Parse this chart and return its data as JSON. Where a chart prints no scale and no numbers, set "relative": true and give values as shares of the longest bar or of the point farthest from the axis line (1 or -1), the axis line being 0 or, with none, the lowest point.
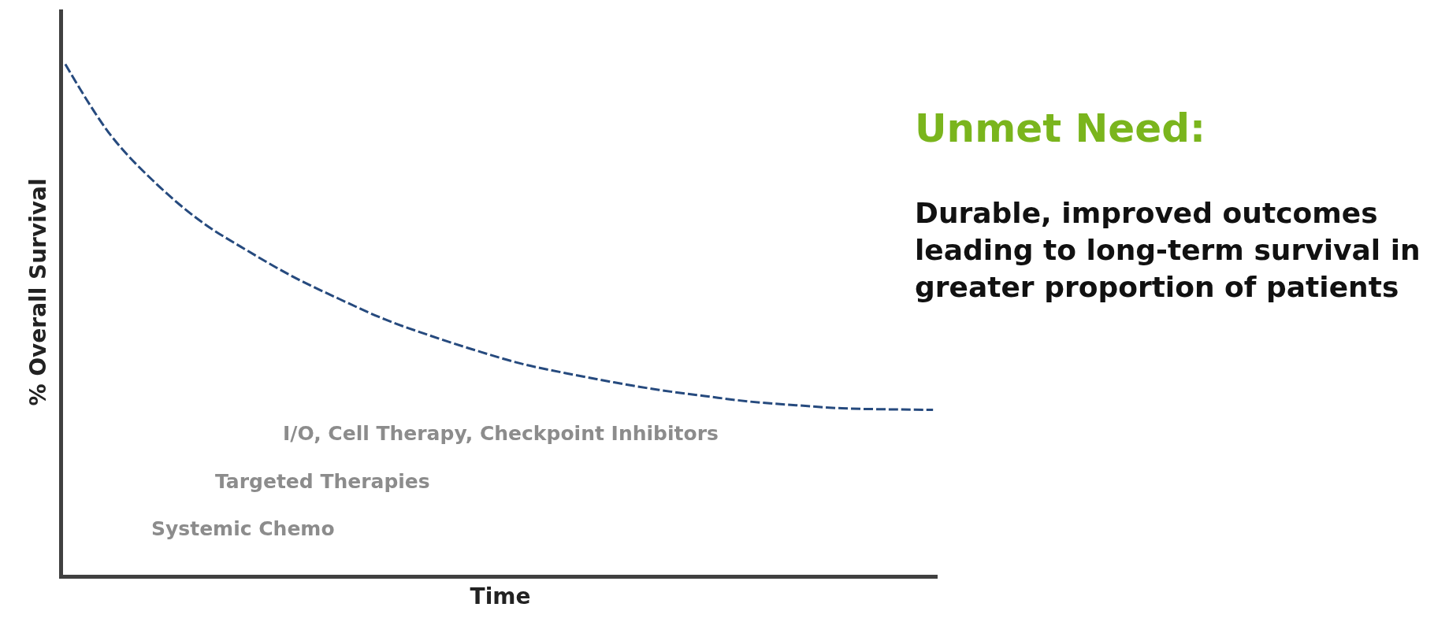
{
  "chart_data": {
    "type": "line",
    "relative": true,
    "xlabel": "Time",
    "ylabel": "% Overall Survival",
    "categories": [
      null,
      null,
      null,
      null,
      null,
      null,
      null,
      null,
      null,
      null,
      null,
      null,
      null,
      null,
      null,
      null,
      null,
      null,
      null,
      null
    ],
    "series": [
      {
        "color": "#264a7e",
        "values": [
          1.0,
          0.86,
          0.765,
          0.69,
          0.634,
          0.583,
          0.54,
          0.5,
          0.468,
          0.439,
          0.413,
          0.394,
          0.377,
          0.362,
          0.35,
          0.339,
          0.332,
          0.326,
          0.324,
          0.323
        ]
      }
    ],
    "line_style": "dashed",
    "marker": "none",
    "tick_labels": false,
    "annotations": [
      "I/O, Cell Therapy, Checkpoint Inhibitors",
      "Targeted Therapies",
      "Systemic Chemo",
      "Unmet Need:",
      "Durable, improved outcomes leading to long-term survival in greater proportion of patients"
    ]
  }
}
